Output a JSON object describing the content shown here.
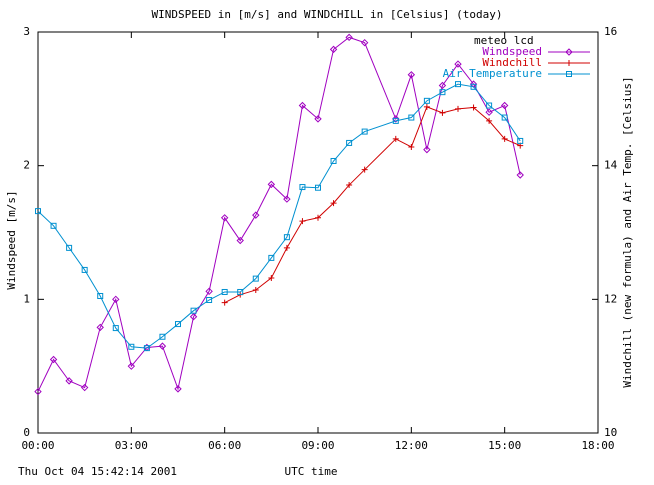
{
  "chart_data": {
    "type": "line",
    "title": "WINDSPEED in [m/s] and WINDCHILL in [Celsius] (today)",
    "xlabel": "UTC time",
    "ylabel": "Windspeed [m/s]",
    "y2label": "Windchill (new formula) and Air Temp. [Celsius]",
    "footer": "Thu Oct 04 15:42:14 2001",
    "legend_title": "meteo lcd",
    "legend": "top-right",
    "x": [
      0,
      0.5,
      1,
      1.5,
      2,
      2.5,
      3,
      3.5,
      4,
      4.5,
      5,
      5.5,
      6,
      6.5,
      7,
      7.5,
      8,
      8.5,
      9,
      9.5,
      10,
      10.5,
      11.5,
      12,
      12.5,
      13,
      13.5,
      14,
      14.5,
      15,
      15.5
    ],
    "xlim": [
      0,
      18
    ],
    "xticks": [
      {
        "value": 0,
        "label": "00:00"
      },
      {
        "value": 3,
        "label": "03:00"
      },
      {
        "value": 6,
        "label": "06:00"
      },
      {
        "value": 9,
        "label": "09:00"
      },
      {
        "value": 12,
        "label": "12:00"
      },
      {
        "value": 15,
        "label": "15:00"
      },
      {
        "value": 18,
        "label": "18:00"
      }
    ],
    "ylim": [
      0,
      3
    ],
    "yticks": [
      0,
      1,
      2,
      3
    ],
    "y2lim": [
      10,
      16
    ],
    "y2ticks": [
      10,
      12,
      14,
      16
    ],
    "series": [
      {
        "name": "Windspeed",
        "color": "#a000c0",
        "marker": "diamond",
        "values": [
          0.31,
          0.55,
          0.39,
          0.34,
          0.79,
          1.0,
          0.5,
          0.64,
          0.65,
          0.33,
          0.87,
          1.06,
          1.61,
          1.44,
          1.63,
          1.86,
          1.75,
          2.45,
          2.35,
          2.87,
          2.96,
          2.92,
          2.35,
          2.68,
          2.12,
          2.6,
          2.76,
          2.61,
          2.4,
          2.45,
          1.93
        ]
      },
      {
        "name": "Windchill",
        "color": "#d00000",
        "marker": "plus",
        "axis": "y2",
        "values": [
          null,
          null,
          null,
          null,
          null,
          null,
          null,
          null,
          null,
          null,
          null,
          null,
          11.95,
          12.07,
          12.14,
          12.32,
          12.77,
          13.17,
          13.22,
          13.44,
          13.71,
          13.94,
          14.4,
          14.28,
          14.88,
          14.79,
          14.85,
          14.87,
          14.67,
          14.4,
          14.3
        ]
      },
      {
        "name": "Air Temperature",
        "color": "#0090d0",
        "marker": "square",
        "axis": "y2",
        "values": [
          13.32,
          13.1,
          12.77,
          12.44,
          12.05,
          11.57,
          11.29,
          11.27,
          11.44,
          11.63,
          11.83,
          11.99,
          12.11,
          12.11,
          12.31,
          12.62,
          12.93,
          13.68,
          13.67,
          14.07,
          14.34,
          14.51,
          14.67,
          14.72,
          14.97,
          15.1,
          15.22,
          15.18,
          14.9,
          14.72,
          14.37
        ]
      }
    ]
  }
}
